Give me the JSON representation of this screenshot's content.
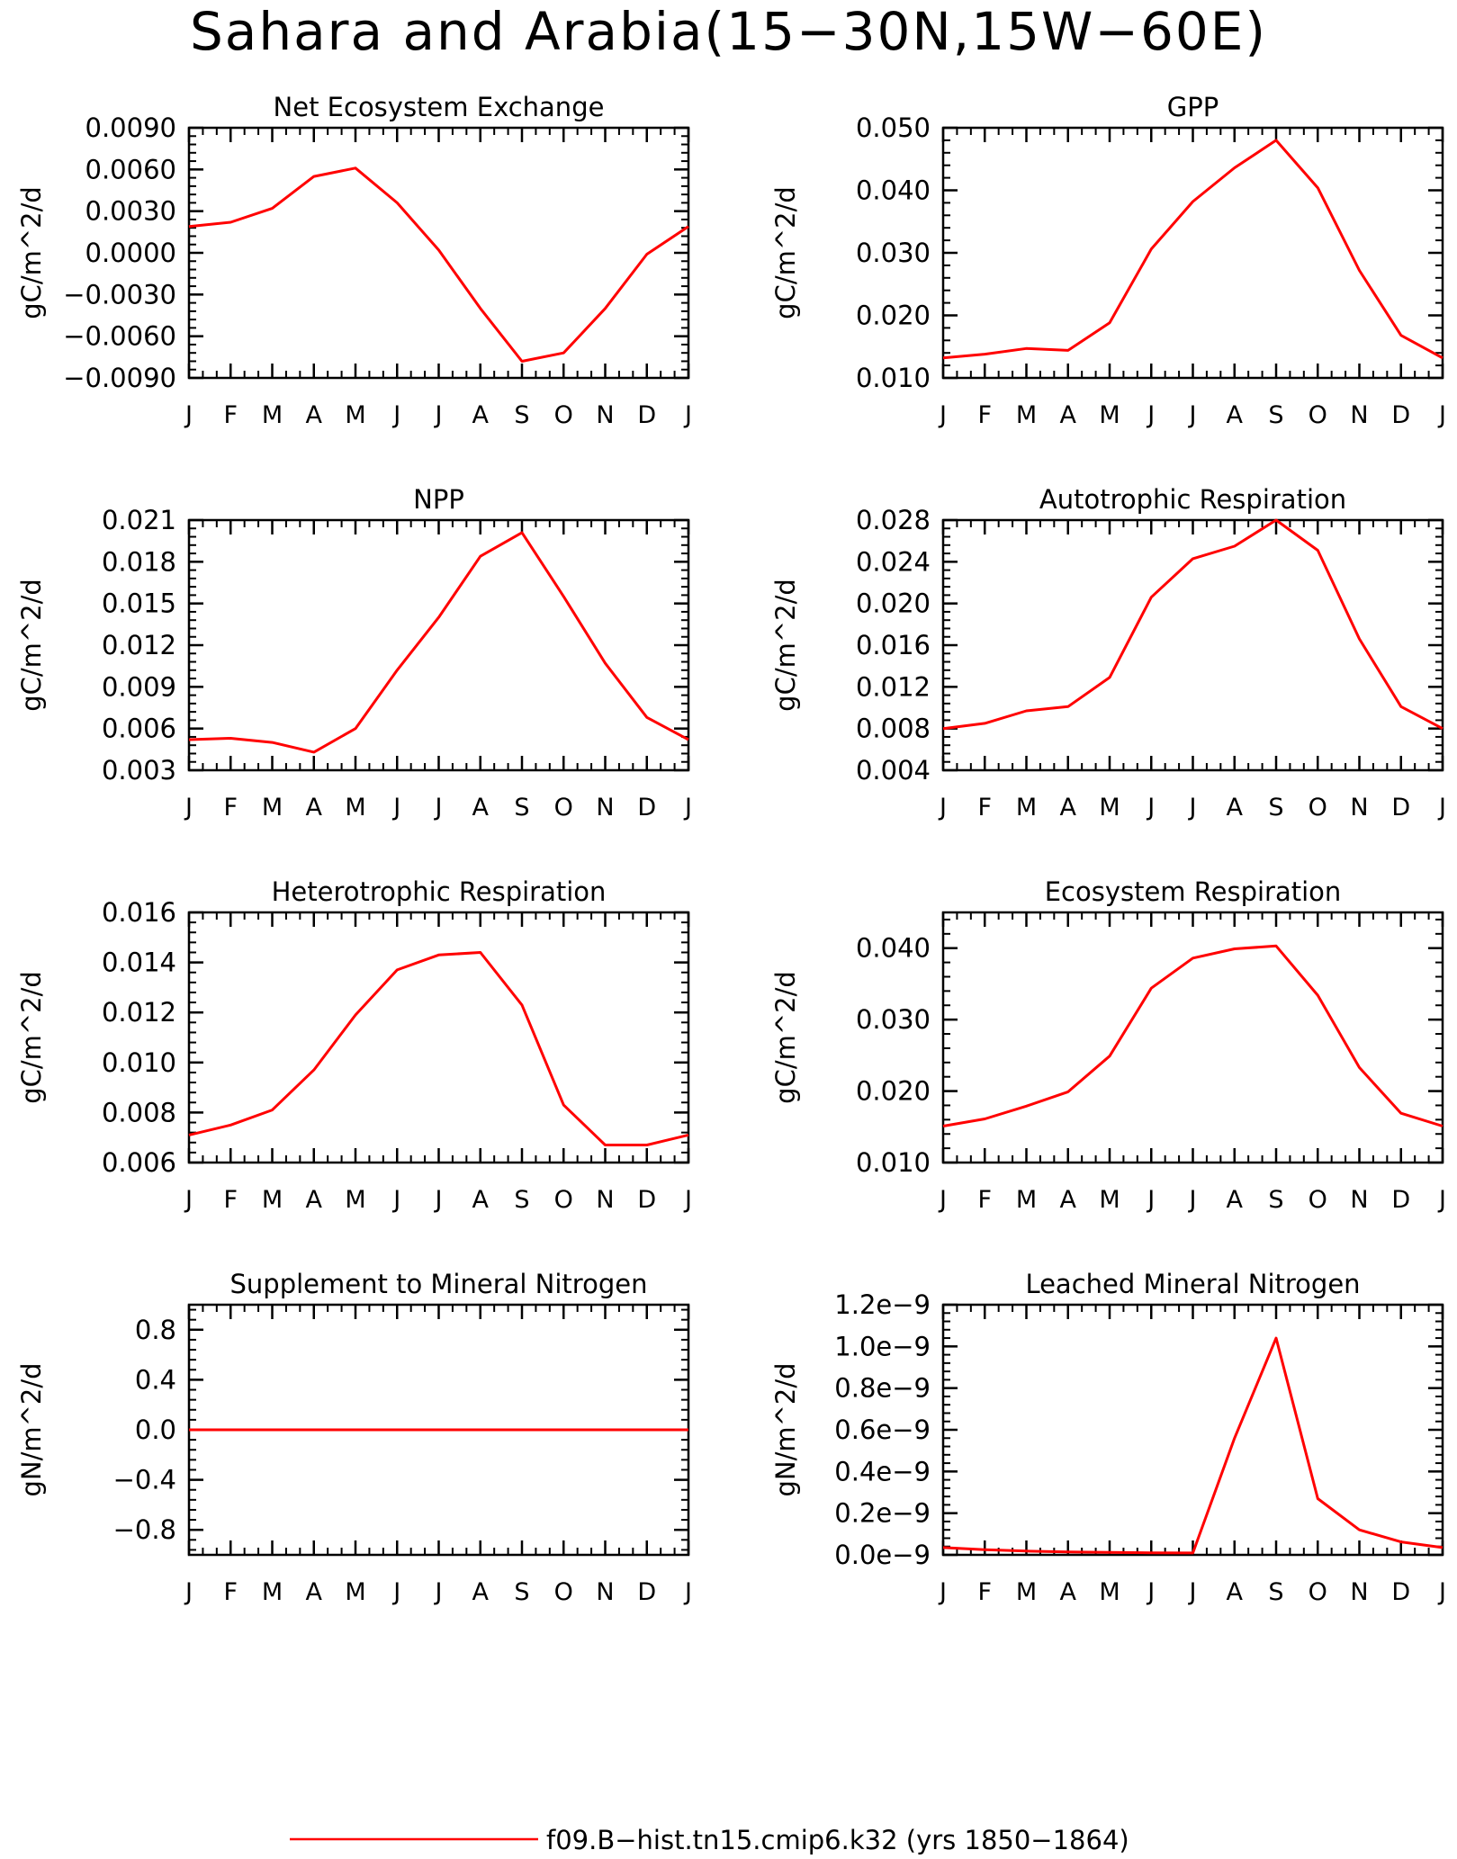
{
  "title": "Sahara and Arabia(15−30N,15W−60E)",
  "line_color": "#ff0000",
  "legend": {
    "label": "f09.B−hist.tn15.cmip6.k32 (yrs 1850−1864)"
  },
  "chart_data": [
    {
      "type": "line",
      "title": "Net Ecosystem Exchange",
      "ylabel": "gC/m^2/d",
      "categories": [
        "J",
        "F",
        "M",
        "A",
        "M",
        "J",
        "J",
        "A",
        "S",
        "O",
        "N",
        "D",
        "J"
      ],
      "ylim": [
        -0.009,
        0.009
      ],
      "yticks": [
        -0.009,
        -0.006,
        -0.003,
        0.0,
        0.003,
        0.006,
        0.009
      ],
      "ytick_labels": [
        "−0.0090",
        "−0.0060",
        "−0.0030",
        "0.0000",
        "0.0030",
        "0.0060",
        "0.0090"
      ],
      "series": [
        {
          "values": [
            0.0019,
            0.0022,
            0.0032,
            0.0055,
            0.0061,
            0.0036,
            0.0002,
            -0.004,
            -0.0078,
            -0.0072,
            -0.004,
            -0.0001,
            0.0019
          ]
        }
      ]
    },
    {
      "type": "line",
      "title": "GPP",
      "ylabel": "gC/m^2/d",
      "categories": [
        "J",
        "F",
        "M",
        "A",
        "M",
        "J",
        "J",
        "A",
        "S",
        "O",
        "N",
        "D",
        "J"
      ],
      "ylim": [
        0.01,
        0.05
      ],
      "yticks": [
        0.01,
        0.02,
        0.03,
        0.04,
        0.05
      ],
      "ytick_labels": [
        "0.010",
        "0.020",
        "0.030",
        "0.040",
        "0.050"
      ],
      "series": [
        {
          "values": [
            0.0132,
            0.0138,
            0.0147,
            0.0144,
            0.0188,
            0.0306,
            0.0382,
            0.0436,
            0.048,
            0.0404,
            0.0272,
            0.0168,
            0.0132
          ]
        }
      ]
    },
    {
      "type": "line",
      "title": "NPP",
      "ylabel": "gC/m^2/d",
      "categories": [
        "J",
        "F",
        "M",
        "A",
        "M",
        "J",
        "J",
        "A",
        "S",
        "O",
        "N",
        "D",
        "J"
      ],
      "ylim": [
        0.003,
        0.021
      ],
      "yticks": [
        0.003,
        0.006,
        0.009,
        0.012,
        0.015,
        0.018,
        0.021
      ],
      "ytick_labels": [
        "0.003",
        "0.006",
        "0.009",
        "0.012",
        "0.015",
        "0.018",
        "0.021"
      ],
      "series": [
        {
          "values": [
            0.0052,
            0.0053,
            0.005,
            0.0043,
            0.006,
            0.0102,
            0.014,
            0.0184,
            0.0201,
            0.0155,
            0.0107,
            0.0068,
            0.0052
          ]
        }
      ]
    },
    {
      "type": "line",
      "title": "Autotrophic Respiration",
      "ylabel": "gC/m^2/d",
      "categories": [
        "J",
        "F",
        "M",
        "A",
        "M",
        "J",
        "J",
        "A",
        "S",
        "O",
        "N",
        "D",
        "J"
      ],
      "ylim": [
        0.004,
        0.028
      ],
      "yticks": [
        0.004,
        0.008,
        0.012,
        0.016,
        0.02,
        0.024,
        0.028
      ],
      "ytick_labels": [
        "0.004",
        "0.008",
        "0.012",
        "0.016",
        "0.020",
        "0.024",
        "0.028"
      ],
      "series": [
        {
          "values": [
            0.008,
            0.0085,
            0.0097,
            0.0101,
            0.0129,
            0.0206,
            0.0243,
            0.0255,
            0.028,
            0.0251,
            0.0166,
            0.0101,
            0.008
          ]
        }
      ]
    },
    {
      "type": "line",
      "title": "Heterotrophic Respiration",
      "ylabel": "gC/m^2/d",
      "categories": [
        "J",
        "F",
        "M",
        "A",
        "M",
        "J",
        "J",
        "A",
        "S",
        "O",
        "N",
        "D",
        "J"
      ],
      "ylim": [
        0.006,
        0.016
      ],
      "yticks": [
        0.006,
        0.008,
        0.01,
        0.012,
        0.014,
        0.016
      ],
      "ytick_labels": [
        "0.006",
        "0.008",
        "0.010",
        "0.012",
        "0.014",
        "0.016"
      ],
      "series": [
        {
          "values": [
            0.0071,
            0.0075,
            0.0081,
            0.0097,
            0.0119,
            0.0137,
            0.0143,
            0.0144,
            0.0123,
            0.0083,
            0.0067,
            0.0067,
            0.0071
          ]
        }
      ]
    },
    {
      "type": "line",
      "title": "Ecosystem Respiration",
      "ylabel": "gC/m^2/d",
      "categories": [
        "J",
        "F",
        "M",
        "A",
        "M",
        "J",
        "J",
        "A",
        "S",
        "O",
        "N",
        "D",
        "J"
      ],
      "ylim": [
        0.01,
        0.045
      ],
      "yticks": [
        0.01,
        0.02,
        0.03,
        0.04
      ],
      "ytick_labels": [
        "0.010",
        "0.020",
        "0.030",
        "0.040"
      ],
      "series": [
        {
          "values": [
            0.0151,
            0.0161,
            0.0179,
            0.0199,
            0.0249,
            0.0344,
            0.0386,
            0.0399,
            0.0403,
            0.0334,
            0.0233,
            0.0169,
            0.0151
          ]
        }
      ]
    },
    {
      "type": "line",
      "title": "Supplement to Mineral Nitrogen",
      "ylabel": "gN/m^2/d",
      "categories": [
        "J",
        "F",
        "M",
        "A",
        "M",
        "J",
        "J",
        "A",
        "S",
        "O",
        "N",
        "D",
        "J"
      ],
      "ylim": [
        -1.0,
        1.0
      ],
      "yticks": [
        -0.8,
        -0.4,
        0.0,
        0.4,
        0.8
      ],
      "ytick_labels": [
        "−0.8",
        "−0.4",
        "0.0",
        "0.4",
        "0.8"
      ],
      "series": [
        {
          "values": [
            0,
            0,
            0,
            0,
            0,
            0,
            0,
            0,
            0,
            0,
            0,
            0,
            0
          ]
        }
      ]
    },
    {
      "type": "line",
      "title": "Leached Mineral Nitrogen",
      "ylabel": "gN/m^2/d",
      "categories": [
        "J",
        "F",
        "M",
        "A",
        "M",
        "J",
        "J",
        "A",
        "S",
        "O",
        "N",
        "D",
        "J"
      ],
      "ylim": [
        0.0,
        1.2e-09
      ],
      "yticks": [
        0.0,
        2e-10,
        4e-10,
        6e-10,
        8e-10,
        1e-09,
        1.2e-09
      ],
      "ytick_labels": [
        "0.0e−9",
        "0.2e−9",
        "0.4e−9",
        "0.6e−9",
        "0.8e−9",
        "1.0e−9",
        "1.2e−9"
      ],
      "series": [
        {
          "values": [
            3.5e-11,
            2.5e-11,
            1.8e-11,
            1.4e-11,
            1.2e-11,
            1e-11,
            9e-12,
            5.6e-10,
            1.04e-09,
            2.7e-10,
            1.2e-10,
            6.2e-11,
            3.5e-11
          ]
        }
      ]
    }
  ]
}
